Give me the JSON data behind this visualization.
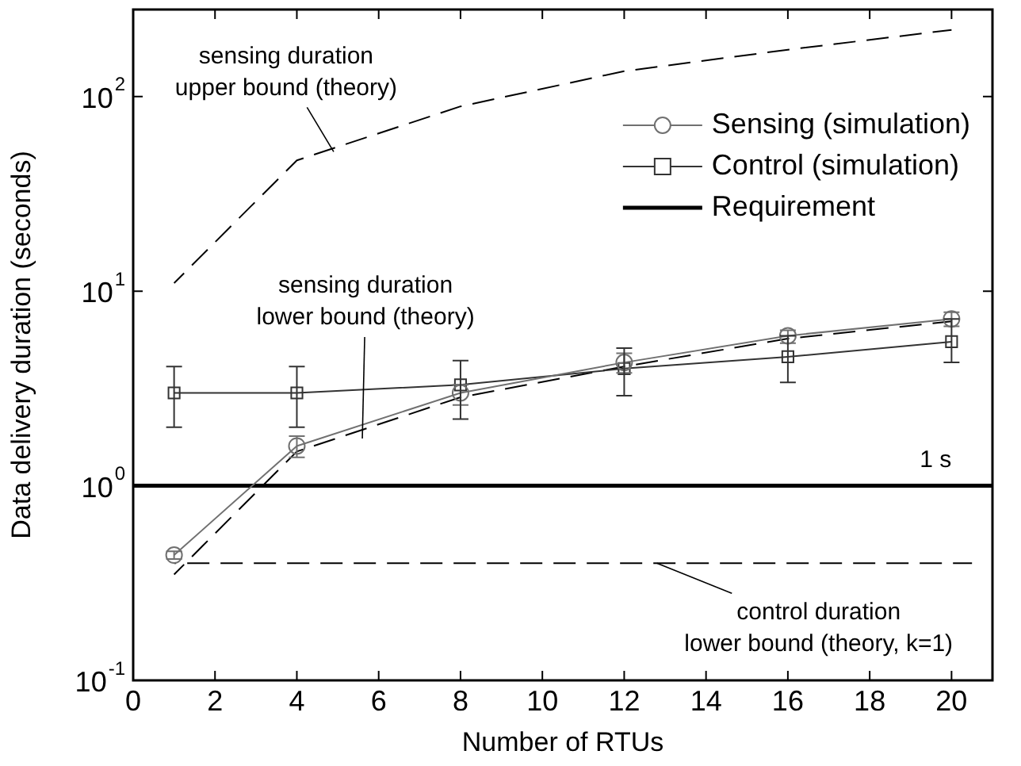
{
  "chart_data": {
    "type": "line",
    "xlabel": "Number of RTUs",
    "ylabel": "Data delivery duration (seconds)",
    "log": "y",
    "grid": false,
    "legend": "top right",
    "xlim": [
      0,
      21
    ],
    "xticks": [
      0,
      2,
      4,
      6,
      8,
      10,
      12,
      14,
      16,
      18,
      20
    ],
    "ylim": [
      0.1,
      280
    ],
    "yticks": [
      {
        "value": 0.1,
        "label": "10$^{-1}$"
      },
      {
        "value": 1,
        "label": "10$^{0}$"
      },
      {
        "value": 10,
        "label": "10$^{1}$"
      },
      {
        "value": 100,
        "label": "10$^{2}$"
      }
    ],
    "series": [
      {
        "name": "Sensing (simulation)",
        "color": "#707070",
        "marker": "circle",
        "x": [
          1,
          4,
          8,
          12,
          16,
          20
        ],
        "values": [
          0.44,
          1.6,
          3.0,
          4.3,
          5.9,
          7.2
        ],
        "errors": [
          [
            0.42,
            0.46
          ],
          [
            1.4,
            1.8
          ],
          [
            2.6,
            3.3
          ],
          [
            3.8,
            4.8
          ],
          [
            5.4,
            6.3
          ],
          [
            6.6,
            7.8
          ]
        ]
      },
      {
        "name": "Control (simulation)",
        "color": "#333333",
        "marker": "square",
        "x": [
          1,
          4,
          8,
          12,
          16,
          20
        ],
        "values": [
          3.0,
          3.0,
          3.3,
          4.0,
          4.6,
          5.5
        ],
        "errors": [
          [
            2.0,
            4.1
          ],
          [
            2.0,
            4.1
          ],
          [
            2.2,
            4.4
          ],
          [
            2.9,
            5.1
          ],
          [
            3.4,
            5.9
          ],
          [
            4.3,
            7.2
          ]
        ]
      },
      {
        "name": "Requirement",
        "color": "#000000",
        "x": [
          0,
          21
        ],
        "values": [
          1,
          1
        ]
      },
      {
        "color": "#000000",
        "line_style": "dashed",
        "x": [
          1,
          4,
          8,
          12,
          16,
          20
        ],
        "values": [
          11,
          47,
          89,
          135,
          174,
          220
        ]
      },
      {
        "color": "#000000",
        "line_style": "dashed",
        "x": [
          1,
          4,
          8,
          12,
          16,
          20
        ],
        "values": [
          0.35,
          1.5,
          2.85,
          4.1,
          5.7,
          7.0
        ]
      },
      {
        "color": "#000000",
        "line_style": "dashed",
        "x": [
          1,
          20.5
        ],
        "values": [
          0.4,
          0.4
        ]
      }
    ],
    "annotations": [
      {
        "text": "sensing duration\nupper bound (theory)",
        "x": 4.9,
        "y": 52
      },
      {
        "text": "sensing duration\nlower bound (theory)",
        "x": 5.6,
        "y": 1.75
      },
      {
        "text": "control duration\nlower bound (theory, k=1)",
        "x": 12.8,
        "y": 0.4
      },
      {
        "text": "1 s",
        "x": 20,
        "y": 1
      }
    ]
  }
}
